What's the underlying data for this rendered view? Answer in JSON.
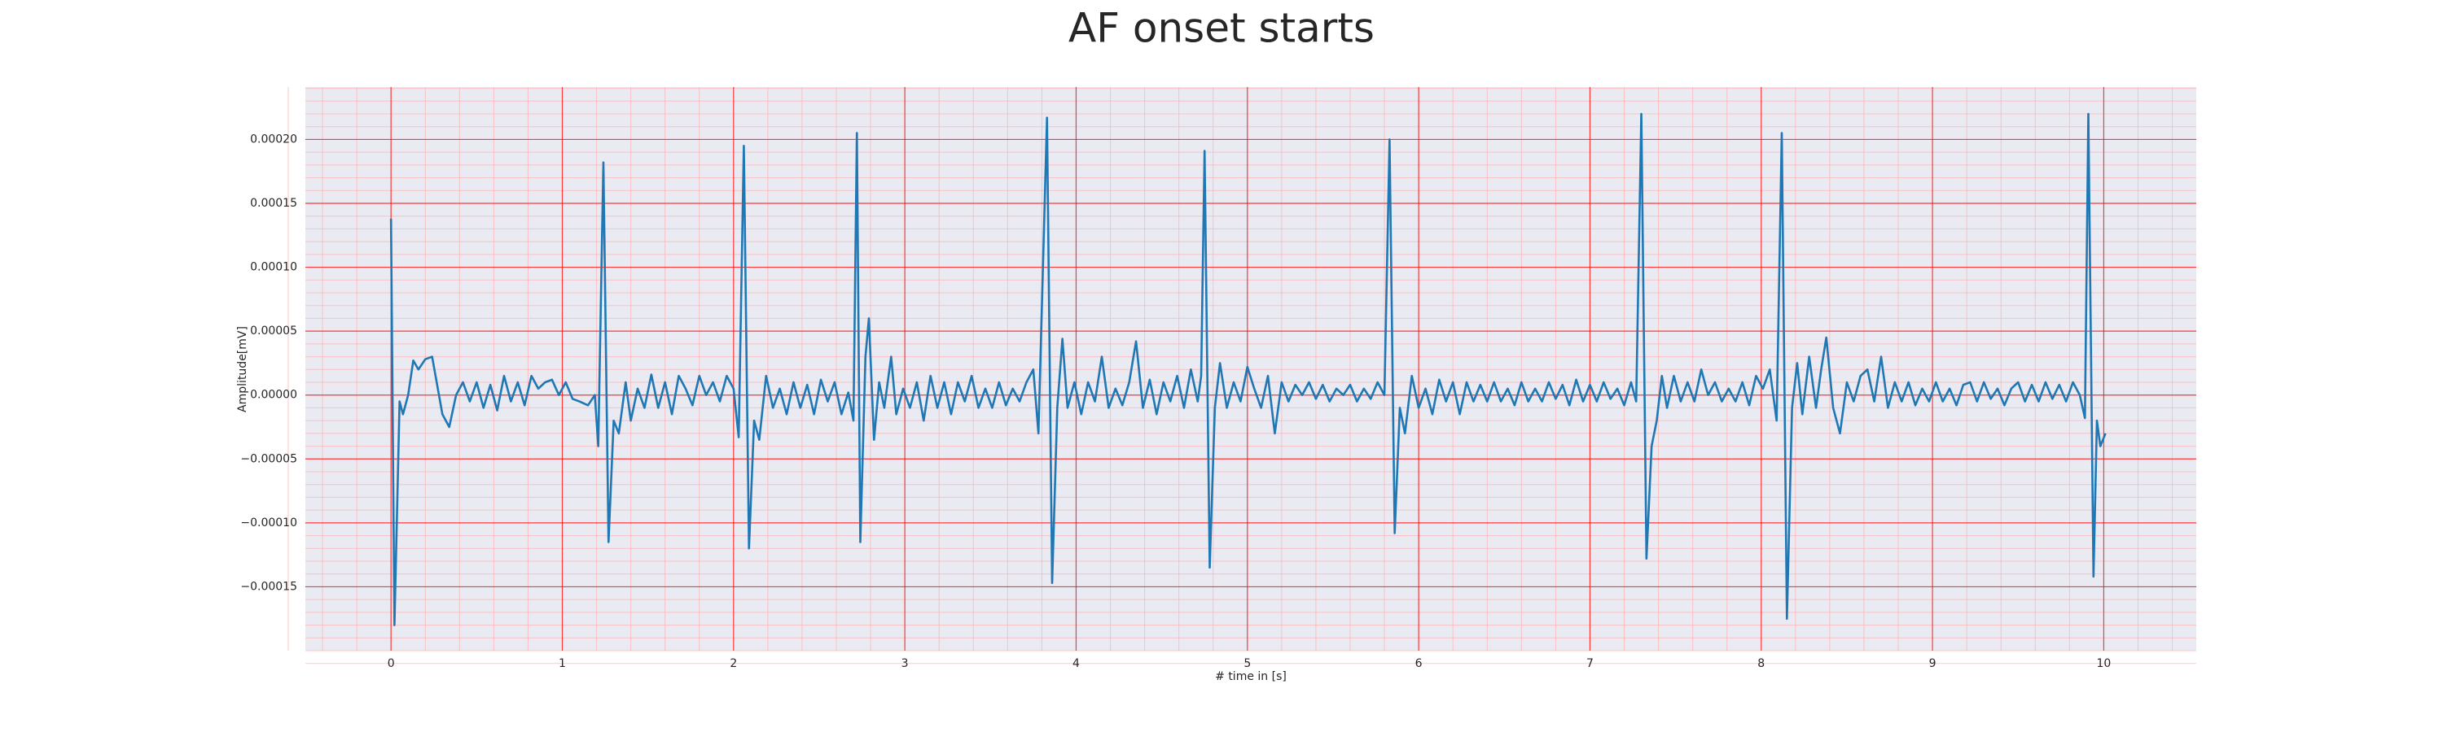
{
  "chart_data": {
    "type": "line",
    "title": "AF onset starts",
    "xlabel": "# time in [s]",
    "ylabel": "Amplitude[mV]",
    "color": "#1f77b4",
    "grid": true,
    "grid_color": "#ff0000",
    "minor_grid": {
      "divisions": 5,
      "color": "#ffb0b0"
    },
    "background": "#eaeaf2",
    "xlim": [
      -0.5,
      10.54
    ],
    "ylim": [
      -0.0002,
      0.000241
    ],
    "xticks": [
      0,
      1,
      2,
      3,
      4,
      5,
      6,
      7,
      8,
      9,
      10
    ],
    "yticks": [
      {
        "value": -0.00015,
        "label": "−0.00015"
      },
      {
        "value": -0.0001,
        "label": "−0.00010"
      },
      {
        "value": -5e-05,
        "label": "−0.00005"
      },
      {
        "value": 0,
        "label": "0.00000"
      },
      {
        "value": 5e-05,
        "label": "0.00005"
      },
      {
        "value": 0.0001,
        "label": "0.00010"
      },
      {
        "value": 0.00015,
        "label": "0.00015"
      },
      {
        "value": 0.0002,
        "label": "0.00020"
      }
    ],
    "x": [
      0,
      0.02,
      0.05,
      0.07,
      0.1,
      0.13,
      0.16,
      0.2,
      0.24,
      0.3,
      0.34,
      0.38,
      0.42,
      0.46,
      0.5,
      0.54,
      0.58,
      0.62,
      0.66,
      0.7,
      0.74,
      0.78,
      0.82,
      0.86,
      0.9,
      0.94,
      0.98,
      1.02,
      1.06,
      1.1,
      1.15,
      1.19,
      1.21,
      1.24,
      1.27,
      1.3,
      1.33,
      1.37,
      1.4,
      1.44,
      1.48,
      1.52,
      1.56,
      1.6,
      1.64,
      1.68,
      1.72,
      1.76,
      1.8,
      1.84,
      1.88,
      1.92,
      1.96,
      2.0,
      2.03,
      2.06,
      2.09,
      2.12,
      2.15,
      2.19,
      2.23,
      2.27,
      2.31,
      2.35,
      2.39,
      2.43,
      2.47,
      2.51,
      2.55,
      2.59,
      2.63,
      2.67,
      2.7,
      2.72,
      2.74,
      2.77,
      2.79,
      2.82,
      2.85,
      2.88,
      2.92,
      2.95,
      2.99,
      3.03,
      3.07,
      3.11,
      3.15,
      3.19,
      3.23,
      3.27,
      3.31,
      3.35,
      3.39,
      3.43,
      3.47,
      3.51,
      3.55,
      3.59,
      3.63,
      3.67,
      3.71,
      3.75,
      3.78,
      3.83,
      3.86,
      3.89,
      3.92,
      3.95,
      3.99,
      4.03,
      4.07,
      4.11,
      4.15,
      4.19,
      4.23,
      4.27,
      4.31,
      4.35,
      4.39,
      4.43,
      4.47,
      4.51,
      4.55,
      4.59,
      4.63,
      4.67,
      4.71,
      4.73,
      4.75,
      4.78,
      4.81,
      4.84,
      4.88,
      4.92,
      4.96,
      5.0,
      5.04,
      5.08,
      5.12,
      5.16,
      5.2,
      5.24,
      5.28,
      5.32,
      5.36,
      5.4,
      5.44,
      5.48,
      5.52,
      5.56,
      5.6,
      5.64,
      5.68,
      5.72,
      5.76,
      5.8,
      5.83,
      5.86,
      5.89,
      5.92,
      5.96,
      6.0,
      6.04,
      6.08,
      6.12,
      6.16,
      6.2,
      6.24,
      6.28,
      6.32,
      6.36,
      6.4,
      6.44,
      6.48,
      6.52,
      6.56,
      6.6,
      6.64,
      6.68,
      6.72,
      6.76,
      6.8,
      6.84,
      6.88,
      6.92,
      6.96,
      7.0,
      7.04,
      7.08,
      7.12,
      7.16,
      7.2,
      7.24,
      7.27,
      7.3,
      7.33,
      7.36,
      7.39,
      7.42,
      7.45,
      7.49,
      7.53,
      7.57,
      7.61,
      7.65,
      7.69,
      7.73,
      7.77,
      7.81,
      7.85,
      7.89,
      7.93,
      7.97,
      8.01,
      8.05,
      8.09,
      8.12,
      8.15,
      8.18,
      8.21,
      8.24,
      8.28,
      8.32,
      8.35,
      8.38,
      8.42,
      8.46,
      8.5,
      8.54,
      8.58,
      8.62,
      8.66,
      8.7,
      8.74,
      8.78,
      8.82,
      8.86,
      8.9,
      8.94,
      8.98,
      9.02,
      9.06,
      9.1,
      9.14,
      9.18,
      9.22,
      9.26,
      9.3,
      9.34,
      9.38,
      9.42,
      9.46,
      9.5,
      9.54,
      9.58,
      9.62,
      9.66,
      9.7,
      9.74,
      9.78,
      9.82,
      9.86,
      9.89,
      9.91,
      9.94,
      9.96,
      9.98,
      10.01
    ],
    "values": [
      0.000138,
      -0.00018,
      -5e-06,
      -1.5e-05,
      0,
      2.7e-05,
      2e-05,
      2.8e-05,
      3e-05,
      -1.5e-05,
      -2.5e-05,
      0,
      1e-05,
      -5e-06,
      1e-05,
      -1e-05,
      8e-06,
      -1.2e-05,
      1.5e-05,
      -5e-06,
      1e-05,
      -8e-06,
      1.5e-05,
      5e-06,
      1e-05,
      1.2e-05,
      0,
      1e-05,
      -3e-06,
      -5e-06,
      -8e-06,
      0,
      -4e-05,
      0.000182,
      -0.000115,
      -2e-05,
      -3e-05,
      1e-05,
      -2e-05,
      5e-06,
      -1e-05,
      1.6e-05,
      -1e-05,
      1e-05,
      -1.5e-05,
      1.5e-05,
      5e-06,
      -8e-06,
      1.5e-05,
      0,
      1e-05,
      -5e-06,
      1.5e-05,
      5e-06,
      -3.3e-05,
      0.000195,
      -0.00012,
      -2e-05,
      -3.5e-05,
      1.5e-05,
      -1e-05,
      5e-06,
      -1.5e-05,
      1e-05,
      -1e-05,
      8e-06,
      -1.5e-05,
      1.2e-05,
      -5e-06,
      1e-05,
      -1.5e-05,
      2e-06,
      -2e-05,
      0.000205,
      -0.000115,
      3e-05,
      6e-05,
      -3.5e-05,
      1e-05,
      -1e-05,
      3e-05,
      -1.5e-05,
      5e-06,
      -1e-05,
      1e-05,
      -2e-05,
      1.5e-05,
      -1e-05,
      1e-05,
      -1.5e-05,
      1e-05,
      -5e-06,
      1.5e-05,
      -1e-05,
      5e-06,
      -1e-05,
      1e-05,
      -8e-06,
      5e-06,
      -5e-06,
      1e-05,
      2e-05,
      -3e-05,
      0.000217,
      -0.000147,
      -1e-05,
      4.4e-05,
      -1e-05,
      1e-05,
      -1.5e-05,
      1e-05,
      -5e-06,
      3e-05,
      -1e-05,
      5e-06,
      -8e-06,
      1e-05,
      4.2e-05,
      -1e-05,
      1.2e-05,
      -1.5e-05,
      1e-05,
      -5e-06,
      1.5e-05,
      -1e-05,
      2e-05,
      -5e-06,
      1.5e-05,
      0.000191,
      -0.000135,
      -1e-05,
      2.5e-05,
      -1e-05,
      1e-05,
      -5e-06,
      2.2e-05,
      5e-06,
      -1e-05,
      1.5e-05,
      -3e-05,
      1e-05,
      -5e-06,
      8e-06,
      0,
      1e-05,
      -3e-06,
      8e-06,
      -5e-06,
      5e-06,
      0,
      8e-06,
      -5e-06,
      5e-06,
      -3e-06,
      1e-05,
      0,
      0.0002,
      -0.000108,
      -1e-05,
      -3e-05,
      1.5e-05,
      -1e-05,
      5e-06,
      -1.5e-05,
      1.2e-05,
      -5e-06,
      1e-05,
      -1.5e-05,
      1e-05,
      -5e-06,
      8e-06,
      -5e-06,
      1e-05,
      -5e-06,
      5e-06,
      -8e-06,
      1e-05,
      -5e-06,
      5e-06,
      -5e-06,
      1e-05,
      -3e-06,
      8e-06,
      -8e-06,
      1.2e-05,
      -5e-06,
      8e-06,
      -5e-06,
      1e-05,
      -3e-06,
      5e-06,
      -8e-06,
      1e-05,
      -5e-06,
      0.00022,
      -0.000128,
      -4e-05,
      -2e-05,
      1.5e-05,
      -1e-05,
      1.5e-05,
      -5e-06,
      1e-05,
      -5e-06,
      2e-05,
      0,
      1e-05,
      -5e-06,
      5e-06,
      -5e-06,
      1e-05,
      -8e-06,
      1.5e-05,
      5e-06,
      2e-05,
      -2e-05,
      0.000205,
      -0.000175,
      -1e-05,
      2.5e-05,
      -1.5e-05,
      3e-05,
      -1e-05,
      2e-05,
      4.5e-05,
      -1e-05,
      -3e-05,
      1e-05,
      -5e-06,
      1.5e-05,
      2e-05,
      -5e-06,
      3e-05,
      -1e-05,
      1e-05,
      -5e-06,
      1e-05,
      -8e-06,
      5e-06,
      -5e-06,
      1e-05,
      -5e-06,
      5e-06,
      -8e-06,
      8e-06,
      1e-05,
      -5e-06,
      1e-05,
      -3e-06,
      5e-06,
      -8e-06,
      5e-06,
      1e-05,
      -5e-06,
      8e-06,
      -5e-06,
      1e-05,
      -3e-06,
      8e-06,
      -5e-06,
      1e-05,
      0,
      -1.8e-05,
      0.00022,
      -0.000142,
      -2e-05,
      -4e-05,
      -3e-05
    ]
  }
}
